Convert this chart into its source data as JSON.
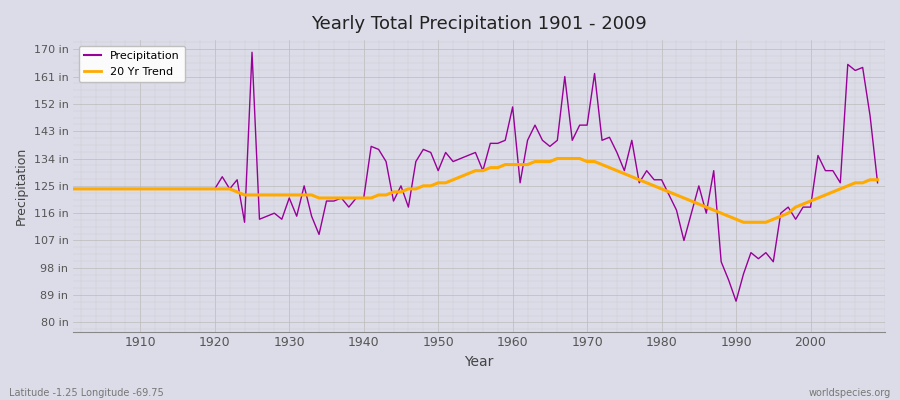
{
  "title": "Yearly Total Precipitation 1901 - 2009",
  "xlabel": "Year",
  "ylabel": "Precipitation",
  "bg_color": "#dcdce8",
  "plot_bg_color": "#dcdce8",
  "precip_color": "#990099",
  "trend_color": "#ffaa00",
  "y_ticks": [
    80,
    89,
    98,
    107,
    116,
    125,
    134,
    143,
    152,
    161,
    170
  ],
  "y_tick_labels": [
    "80 in",
    "89 in",
    "98 in",
    "107 in",
    "116 in",
    "125 in",
    "134 in",
    "143 in",
    "152 in",
    "161 in",
    "170 in"
  ],
  "ylim": [
    77,
    173
  ],
  "xlim": [
    1901,
    2010
  ],
  "x_ticks": [
    1910,
    1920,
    1930,
    1940,
    1950,
    1960,
    1970,
    1980,
    1990,
    2000
  ],
  "footer_left": "Latitude -1.25 Longitude -69.75",
  "footer_right": "worldspecies.org",
  "years": [
    1901,
    1902,
    1903,
    1904,
    1905,
    1906,
    1907,
    1908,
    1909,
    1910,
    1911,
    1912,
    1913,
    1914,
    1915,
    1916,
    1917,
    1918,
    1919,
    1920,
    1921,
    1922,
    1923,
    1924,
    1925,
    1926,
    1927,
    1928,
    1929,
    1930,
    1931,
    1932,
    1933,
    1934,
    1935,
    1936,
    1937,
    1938,
    1939,
    1940,
    1941,
    1942,
    1943,
    1944,
    1945,
    1946,
    1947,
    1948,
    1949,
    1950,
    1951,
    1952,
    1953,
    1954,
    1955,
    1956,
    1957,
    1958,
    1959,
    1960,
    1961,
    1962,
    1963,
    1964,
    1965,
    1966,
    1967,
    1968,
    1969,
    1970,
    1971,
    1972,
    1973,
    1974,
    1975,
    1976,
    1977,
    1978,
    1979,
    1980,
    1981,
    1982,
    1983,
    1984,
    1985,
    1986,
    1987,
    1988,
    1989,
    1990,
    1991,
    1992,
    1993,
    1994,
    1995,
    1996,
    1997,
    1998,
    1999,
    2000,
    2001,
    2002,
    2003,
    2004,
    2005,
    2006,
    2007,
    2008,
    2009
  ],
  "precip": [
    124,
    124,
    124,
    124,
    124,
    124,
    124,
    124,
    124,
    124,
    124,
    124,
    124,
    124,
    124,
    124,
    124,
    124,
    124,
    124,
    128,
    124,
    127,
    113,
    169,
    114,
    115,
    116,
    114,
    121,
    115,
    125,
    115,
    109,
    120,
    120,
    121,
    118,
    121,
    121,
    138,
    137,
    133,
    120,
    125,
    118,
    133,
    137,
    136,
    130,
    136,
    133,
    134,
    135,
    136,
    130,
    139,
    139,
    140,
    151,
    126,
    140,
    145,
    140,
    138,
    140,
    161,
    140,
    145,
    145,
    162,
    140,
    141,
    136,
    130,
    140,
    126,
    130,
    127,
    127,
    122,
    117,
    107,
    116,
    125,
    116,
    130,
    100,
    94,
    87,
    96,
    103,
    101,
    103,
    100,
    116,
    118,
    114,
    118,
    118,
    135,
    130,
    130,
    126,
    165,
    163,
    164,
    148,
    126
  ],
  "trend": [
    124,
    124,
    124,
    124,
    124,
    124,
    124,
    124,
    124,
    124,
    124,
    124,
    124,
    124,
    124,
    124,
    124,
    124,
    124,
    124,
    124,
    124,
    123,
    122,
    122,
    122,
    122,
    122,
    122,
    122,
    122,
    122,
    122,
    121,
    121,
    121,
    121,
    121,
    121,
    121,
    121,
    122,
    122,
    123,
    123,
    124,
    124,
    125,
    125,
    126,
    126,
    127,
    128,
    129,
    130,
    130,
    131,
    131,
    132,
    132,
    132,
    132,
    133,
    133,
    133,
    134,
    134,
    134,
    134,
    133,
    133,
    132,
    131,
    130,
    129,
    128,
    127,
    126,
    125,
    124,
    123,
    122,
    121,
    120,
    119,
    118,
    117,
    116,
    115,
    114,
    113,
    113,
    113,
    113,
    114,
    115,
    116,
    118,
    119,
    120,
    121,
    122,
    123,
    124,
    125,
    126,
    126,
    127,
    127
  ]
}
